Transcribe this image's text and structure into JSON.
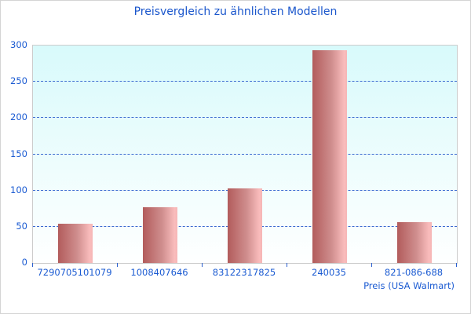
{
  "title": "Preisvergleich zu ähnlichen Modellen",
  "chart_data": {
    "type": "bar",
    "title": "Preisvergleich zu ähnlichen Modellen",
    "categories": [
      "7290705101079",
      "1008407646",
      "83122317825",
      "240035",
      "821-086-688"
    ],
    "values": [
      54,
      77,
      103,
      293,
      56
    ],
    "xlabel": "Preis (USA Walmart)",
    "ylabel": "",
    "ylim": [
      0,
      300
    ],
    "yticks": [
      0,
      50,
      100,
      150,
      200,
      250,
      300
    ],
    "grid": true,
    "gridline_style": "dashed",
    "legend_position": "none"
  },
  "colors": {
    "title_text": "#1a56cc",
    "axis_text": "#1b5bd2",
    "gridline": "#3a6ad0",
    "bar_gradient_left": "#b25c5c",
    "bar_gradient_right": "#f9bcbc",
    "plot_bg_top": "#d8fafb",
    "plot_bg_bottom": "#feffff",
    "plot_border": "#cccccc",
    "outer_border": "#d4d4d4"
  }
}
